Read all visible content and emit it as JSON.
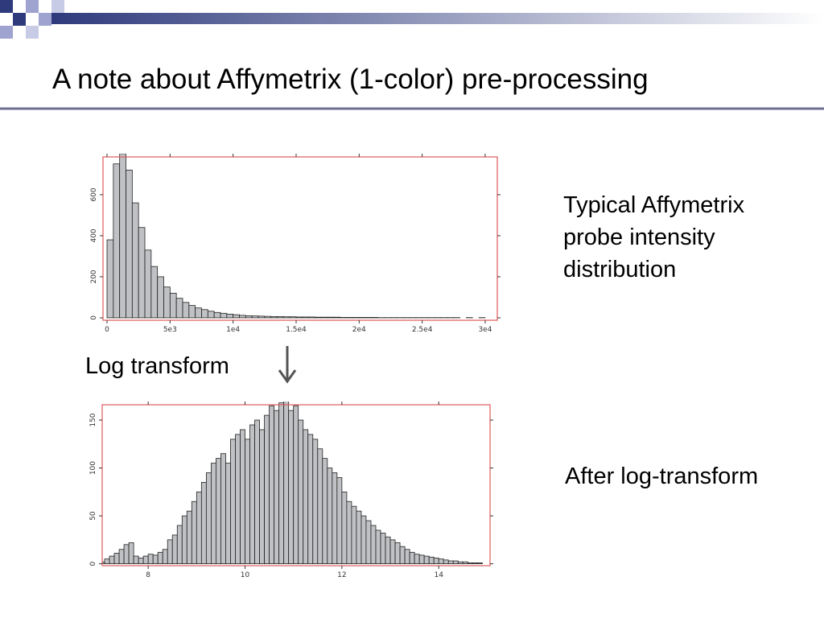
{
  "slide": {
    "title": "A note about Affymetrix (1-color) pre-processing",
    "top_caption": "Typical Affymetrix probe intensity distribution",
    "arrow_label": "Log transform",
    "bottom_caption": "After log-transform"
  },
  "chart_data": [
    {
      "type": "histogram",
      "color": "#bfc1c4",
      "frame_color": "#e05a5a",
      "bins": [
        0,
        500,
        1000,
        1500,
        2000,
        2500,
        3000,
        3500,
        4000,
        4500,
        5000,
        5500,
        6000,
        6500,
        7000,
        7500,
        8000,
        8500,
        9000,
        9500,
        10000,
        10500,
        11000,
        11500,
        12000,
        12500,
        13000,
        13500,
        14000,
        14500,
        15000,
        15500,
        16000,
        16500,
        17000,
        17500,
        18000,
        18500,
        19000,
        19500,
        20000,
        20500,
        21000,
        21500,
        22000,
        22500,
        23000,
        23500,
        24000,
        24500,
        25000,
        25500,
        26000,
        26500,
        27000,
        27500,
        28000,
        28500,
        29000,
        29500,
        30000
      ],
      "values": [
        380,
        750,
        800,
        720,
        560,
        440,
        330,
        250,
        200,
        150,
        120,
        95,
        75,
        60,
        48,
        40,
        32,
        26,
        22,
        18,
        15,
        12,
        10,
        9,
        8,
        7,
        6,
        6,
        5,
        5,
        4,
        4,
        4,
        3,
        3,
        3,
        3,
        2,
        2,
        2,
        2,
        2,
        2,
        1,
        1,
        1,
        1,
        1,
        1,
        1,
        1,
        1,
        1,
        1,
        1,
        1,
        0,
        1,
        0,
        1
      ],
      "xlim": [
        -320,
        30960
      ],
      "ylim": [
        -12,
        784
      ],
      "xticks": [
        0,
        {
          "value": 5000,
          "label": "5e3"
        },
        {
          "value": 10000,
          "label": "1e4"
        },
        {
          "value": 15000,
          "label": "1.5e4"
        },
        {
          "value": 20000,
          "label": "2e4"
        },
        {
          "value": 25000,
          "label": "2.5e4"
        },
        {
          "value": 30000,
          "label": "3e4"
        }
      ],
      "yticks": [
        0,
        200,
        400,
        600
      ]
    },
    {
      "type": "histogram",
      "color": "#bfc1c4",
      "frame_color": "#e05a5a",
      "bins": [
        7.0,
        7.1,
        7.2,
        7.3,
        7.4,
        7.5,
        7.6,
        7.7,
        7.8,
        7.9,
        8.0,
        8.1,
        8.2,
        8.3,
        8.4,
        8.5,
        8.6,
        8.7,
        8.8,
        8.9,
        9.0,
        9.1,
        9.2,
        9.3,
        9.4,
        9.5,
        9.6,
        9.7,
        9.8,
        9.9,
        10.0,
        10.1,
        10.2,
        10.3,
        10.4,
        10.5,
        10.6,
        10.7,
        10.8,
        10.9,
        11.0,
        11.1,
        11.2,
        11.3,
        11.4,
        11.5,
        11.6,
        11.7,
        11.8,
        11.9,
        12.0,
        12.1,
        12.2,
        12.3,
        12.4,
        12.5,
        12.6,
        12.7,
        12.8,
        12.9,
        13.0,
        13.1,
        13.2,
        13.3,
        13.4,
        13.5,
        13.6,
        13.7,
        13.8,
        13.9,
        14.0,
        14.1,
        14.2,
        14.3,
        14.4,
        14.5,
        14.6,
        14.7,
        14.8,
        14.9,
        15.0
      ],
      "values": [
        2,
        5,
        8,
        11,
        15,
        20,
        22,
        8,
        6,
        8,
        10,
        9,
        12,
        15,
        25,
        30,
        40,
        50,
        55,
        65,
        75,
        85,
        95,
        105,
        110,
        115,
        105,
        130,
        135,
        140,
        130,
        145,
        150,
        140,
        155,
        165,
        160,
        168,
        170,
        160,
        165,
        150,
        140,
        135,
        130,
        120,
        110,
        100,
        95,
        90,
        75,
        65,
        60,
        55,
        50,
        45,
        40,
        35,
        32,
        28,
        25,
        22,
        18,
        15,
        12,
        10,
        9,
        8,
        7,
        6,
        5,
        4,
        3,
        3,
        2,
        2,
        1,
        1,
        1,
        0
      ],
      "xlim": [
        7.05,
        15.06
      ],
      "ylim": [
        -2,
        166
      ],
      "xticks": [
        8,
        10,
        12,
        14
      ],
      "yticks": [
        0,
        50,
        100,
        150
      ]
    }
  ]
}
